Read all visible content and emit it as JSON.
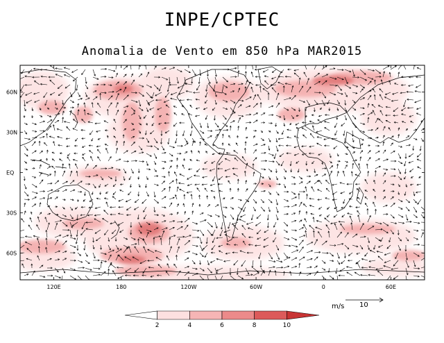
{
  "header": {
    "agency": "INPE/CPTEC",
    "title": "Anomalia de Vento em 850 hPa MAR2015"
  },
  "map": {
    "lat_ticks": [
      "60N",
      "30N",
      "EQ",
      "30S",
      "60S"
    ],
    "lat_values": [
      60,
      30,
      0,
      -30,
      -60
    ],
    "lon_ticks": [
      "120E",
      "180",
      "120W",
      "60W",
      "0",
      "60E"
    ],
    "lon_values": [
      120,
      180,
      240,
      300,
      360,
      420
    ],
    "lon_range": [
      90,
      450
    ],
    "lat_range": [
      -80,
      80
    ]
  },
  "colorbar": {
    "labels": [
      "2",
      "4",
      "6",
      "8",
      "10"
    ],
    "colors": [
      "#ffffff",
      "#fde0e0",
      "#f6b5b5",
      "#ec8a8a",
      "#dc5a5a",
      "#c83434"
    ]
  },
  "vector_key": {
    "unit": "m/s",
    "value": "10"
  },
  "shading": {
    "light": "#fde3e3",
    "medium": "#f4b0b0",
    "strong": "#e07676"
  }
}
